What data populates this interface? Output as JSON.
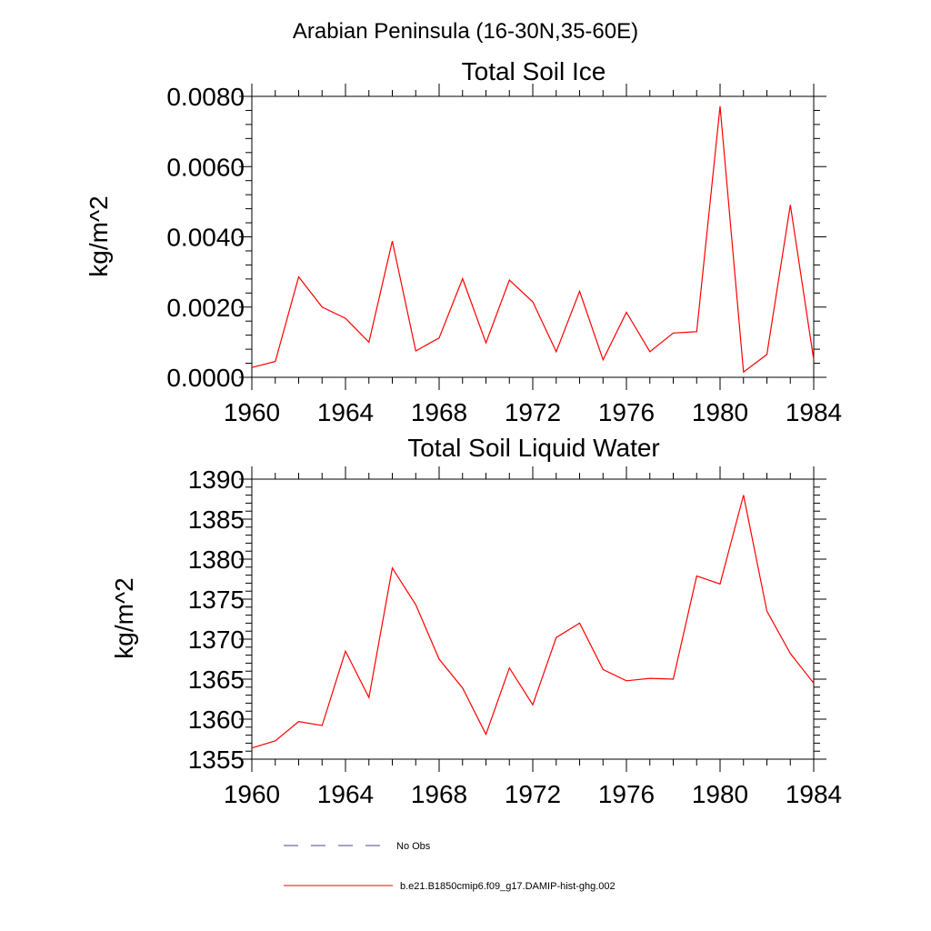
{
  "figure_title": "Arabian Peninsula (16-30N,35-60E)",
  "line_color": "#ff0000",
  "chart_data": [
    {
      "type": "line",
      "title": "Total Soil Ice",
      "xlabel": "",
      "ylabel": "kg/m^2",
      "xlim": [
        1960,
        1984
      ],
      "ylim": [
        0.0,
        0.008
      ],
      "xticks": [
        "1960",
        "1964",
        "1968",
        "1972",
        "1976",
        "1980",
        "1984"
      ],
      "yticks": [
        "0.0000",
        "0.0020",
        "0.0040",
        "0.0060",
        "0.0080"
      ],
      "x": [
        1960,
        1961,
        1962,
        1963,
        1964,
        1965,
        1966,
        1967,
        1968,
        1969,
        1970,
        1971,
        1972,
        1973,
        1974,
        1975,
        1976,
        1977,
        1978,
        1979,
        1980,
        1981,
        1982,
        1983,
        1984
      ],
      "series": [
        {
          "name": "b.e21.B1850cmip6.f09_g17.DAMIP-hist-ghg.002",
          "values": [
            0.00028,
            0.00045,
            0.00286,
            0.002,
            0.00168,
            0.001,
            0.00388,
            0.00075,
            0.00112,
            0.00281,
            0.00098,
            0.00277,
            0.00215,
            0.00073,
            0.00245,
            0.0005,
            0.00185,
            0.00073,
            0.00126,
            0.0013,
            0.00772,
            0.00015,
            0.00065,
            0.00491,
            0.0005
          ]
        }
      ]
    },
    {
      "type": "line",
      "title": "Total Soil Liquid Water",
      "xlabel": "",
      "ylabel": "kg/m^2",
      "xlim": [
        1960,
        1984
      ],
      "ylim": [
        1355,
        1390
      ],
      "xticks": [
        "1960",
        "1964",
        "1968",
        "1972",
        "1976",
        "1980",
        "1984"
      ],
      "yticks": [
        "1355",
        "1360",
        "1365",
        "1370",
        "1375",
        "1380",
        "1385",
        "1390"
      ],
      "x": [
        1960,
        1961,
        1962,
        1963,
        1964,
        1965,
        1966,
        1967,
        1968,
        1969,
        1970,
        1971,
        1972,
        1973,
        1974,
        1975,
        1976,
        1977,
        1978,
        1979,
        1980,
        1981,
        1982,
        1983,
        1984
      ],
      "series": [
        {
          "name": "b.e21.B1850cmip6.f09_g17.DAMIP-hist-ghg.002",
          "values": [
            1356.4,
            1357.3,
            1359.7,
            1359.2,
            1368.5,
            1362.7,
            1378.9,
            1374.3,
            1367.5,
            1363.9,
            1358.1,
            1366.4,
            1361.8,
            1370.2,
            1372.0,
            1366.2,
            1364.8,
            1365.1,
            1365.0,
            1377.9,
            1376.9,
            1388.0,
            1373.5,
            1368.2,
            1364.5
          ]
        }
      ]
    }
  ],
  "legend": {
    "placement": "bottom-left",
    "items": [
      {
        "label": "No Obs",
        "style": "dashed",
        "color": "#4a4a8a"
      },
      {
        "label": "b.e21.B1850cmip6.f09_g17.DAMIP-hist-ghg.002",
        "style": "solid",
        "color": "#ff0000"
      }
    ]
  }
}
